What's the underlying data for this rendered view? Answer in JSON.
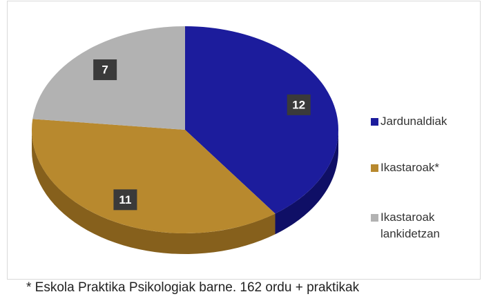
{
  "chart_data": {
    "type": "pie",
    "categories": [
      "Jardunaldiak",
      "Ikastaroak*",
      "Ikastaroak lankidetzan"
    ],
    "values": [
      12,
      11,
      7
    ],
    "colors": [
      "#1c1c9c",
      "#b8892e",
      "#b2b2b2"
    ],
    "side_colors": [
      "#0f0f66",
      "#86601c",
      "#8a8a8a"
    ],
    "footnote": "* Eskola Praktika Psikologiak barne. 162 ordu + praktikak"
  }
}
